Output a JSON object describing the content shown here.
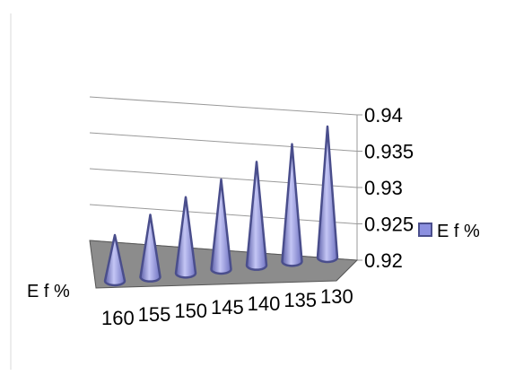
{
  "chart_data": {
    "type": "bar",
    "shape": "3d-cone",
    "categories": [
      "160",
      "155",
      "150",
      "145",
      "140",
      "135",
      "130"
    ],
    "series": [
      {
        "name": "E f %",
        "values": [
          0.9222,
          0.9245,
          0.9265,
          0.9285,
          0.9305,
          0.9325,
          0.9345
        ]
      }
    ],
    "ylim": [
      0.92,
      0.94
    ],
    "yticks": [
      "0.94",
      "0.935",
      "0.93",
      "0.925",
      "0.92"
    ],
    "depth_axis_label": "E f %",
    "legend": {
      "label": "E f %",
      "position": "right"
    },
    "grid": true,
    "colors": {
      "cone": "#7b7fd6",
      "cone_edge": "#4a4e8c",
      "floor": "#8c8c8c",
      "grid": "#9a9a9a"
    }
  }
}
